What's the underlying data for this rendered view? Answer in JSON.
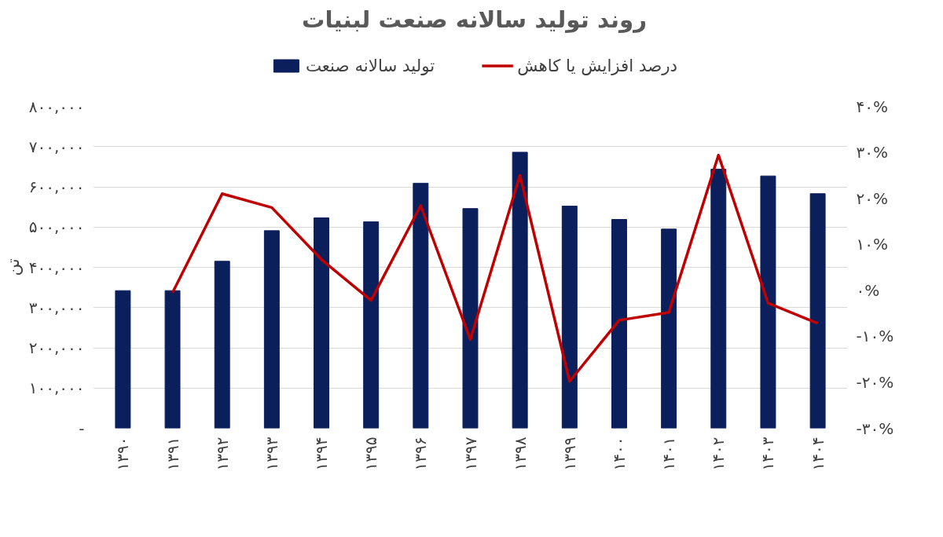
{
  "chart_data": {
    "type": "bar",
    "title": "روند تولید سالانه صنعت لبنیات",
    "ylabel": "تن",
    "categories": [
      "۱۳۹۰",
      "۱۳۹۱",
      "۱۳۹۲",
      "۱۳۹۳",
      "۱۳۹۴",
      "۱۳۹۵",
      "۱۳۹۶",
      "۱۳۹۷",
      "۱۳۹۸",
      "۱۳۹۹",
      "۱۴۰۰",
      "۱۴۰۱",
      "۱۴۰۲",
      "۱۴۰۳",
      "۱۴۰۴"
    ],
    "series": [
      {
        "name": "تولید سالانه صنعت",
        "color": "#0b1f5c",
        "values": [
          342000,
          342000,
          415000,
          491000,
          523000,
          513000,
          609000,
          546000,
          686000,
          552000,
          519000,
          495000,
          644000,
          627000,
          583000
        ]
      },
      {
        "name": "درصد افزایش یا کاهش",
        "color": "#c00000",
        "type": "line",
        "axis": "y2",
        "values": [
          null,
          -0.5,
          21,
          18,
          6.7,
          -2.2,
          18.4,
          -10.7,
          25,
          -19.8,
          -6.5,
          -4.8,
          29.4,
          -2.8,
          -7.2
        ]
      }
    ],
    "ylim": [
      0,
      800000
    ],
    "yticks": [
      {
        "value": 0,
        "label": "-"
      },
      {
        "value": 100000,
        "label": "۱۰۰,۰۰۰"
      },
      {
        "value": 200000,
        "label": "۲۰۰,۰۰۰"
      },
      {
        "value": 300000,
        "label": "۳۰۰,۰۰۰"
      },
      {
        "value": 400000,
        "label": "۴۰۰,۰۰۰"
      },
      {
        "value": 500000,
        "label": "۵۰۰,۰۰۰"
      },
      {
        "value": 600000,
        "label": "۶۰۰,۰۰۰"
      },
      {
        "value": 700000,
        "label": "۷۰۰,۰۰۰"
      },
      {
        "value": 800000,
        "label": "۸۰۰,۰۰۰"
      }
    ],
    "y2lim": [
      -30,
      40
    ],
    "y2ticks": [
      {
        "value": -30,
        "label": "-۳۰%"
      },
      {
        "value": -20,
        "label": "-۲۰%"
      },
      {
        "value": -10,
        "label": "-۱۰%"
      },
      {
        "value": 0,
        "label": "۰%"
      },
      {
        "value": 10,
        "label": "۱۰%"
      },
      {
        "value": 20,
        "label": "۲۰%"
      },
      {
        "value": 30,
        "label": "۳۰%"
      },
      {
        "value": 40,
        "label": "۴۰%"
      }
    ],
    "grid": "y",
    "legend": "top",
    "marker": "none",
    "line_style": "solid"
  }
}
